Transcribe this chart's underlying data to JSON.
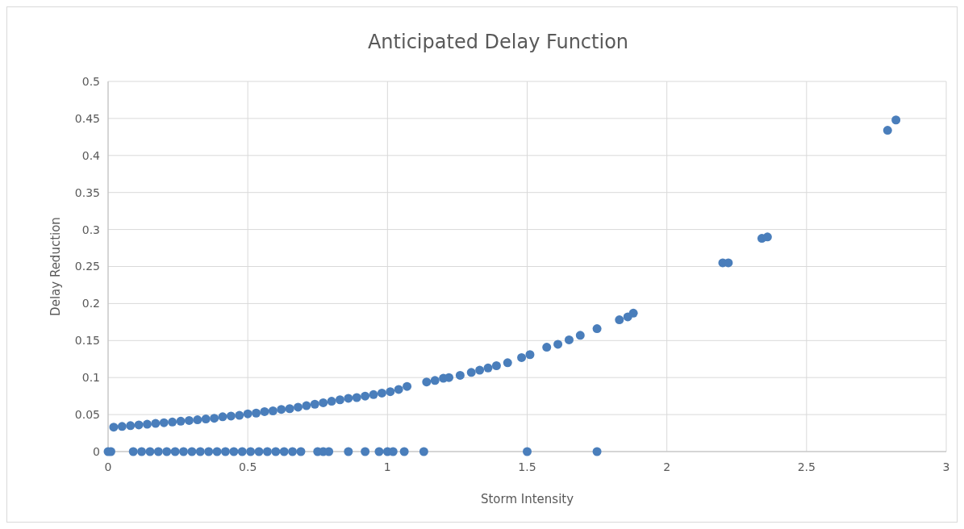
{
  "chart_data": {
    "type": "scatter",
    "title": "Anticipated Delay Function",
    "xlabel": "Storm Intensity",
    "ylabel": "Delay Reduction",
    "xlim": [
      0,
      3
    ],
    "xticks": [
      0,
      0.5,
      1,
      1.5,
      2,
      2.5,
      3
    ],
    "ylim": [
      0,
      0.5
    ],
    "yticks": [
      0,
      0.05,
      0.1,
      0.15,
      0.2,
      0.25,
      0.3,
      0.35,
      0.4,
      0.45,
      0.5
    ],
    "grid": true,
    "marker": "circle",
    "series": [
      {
        "color": "#4a7ebb",
        "x": [
          0.02,
          0.05,
          0.08,
          0.11,
          0.14,
          0.17,
          0.2,
          0.23,
          0.26,
          0.29,
          0.32,
          0.35,
          0.38,
          0.41,
          0.44,
          0.47,
          0.5,
          0.53,
          0.56,
          0.59,
          0.62,
          0.65,
          0.68,
          0.71,
          0.74,
          0.77,
          0.8,
          0.83,
          0.86,
          0.89,
          0.92,
          0.95,
          0.98,
          1.01,
          1.04,
          1.07,
          1.14,
          1.17,
          1.2,
          1.22,
          1.26,
          1.3,
          1.33,
          1.36,
          1.39,
          1.43,
          1.48,
          1.51,
          1.57,
          1.61,
          1.65,
          1.69,
          1.75,
          1.83,
          1.86,
          1.88,
          2.2,
          2.22,
          2.34,
          2.36,
          2.79,
          2.82,
          0,
          0.01,
          0.09,
          0.12,
          0.15,
          0.18,
          0.21,
          0.24,
          0.27,
          0.3,
          0.33,
          0.36,
          0.39,
          0.42,
          0.45,
          0.48,
          0.51,
          0.54,
          0.57,
          0.6,
          0.63,
          0.66,
          0.69,
          0.75,
          0.77,
          0.79,
          0.86,
          0.92,
          0.97,
          1,
          1.02,
          1.06,
          1.13,
          1.5,
          1.75
        ],
        "values": [
          0.033,
          0.034,
          0.035,
          0.036,
          0.037,
          0.038,
          0.039,
          0.04,
          0.041,
          0.042,
          0.043,
          0.044,
          0.045,
          0.047,
          0.048,
          0.049,
          0.051,
          0.052,
          0.054,
          0.055,
          0.057,
          0.058,
          0.06,
          0.062,
          0.064,
          0.066,
          0.068,
          0.07,
          0.072,
          0.073,
          0.075,
          0.077,
          0.079,
          0.081,
          0.084,
          0.088,
          0.094,
          0.096,
          0.099,
          0.1,
          0.103,
          0.107,
          0.11,
          0.113,
          0.116,
          0.12,
          0.127,
          0.131,
          0.141,
          0.145,
          0.151,
          0.157,
          0.166,
          0.178,
          0.182,
          0.187,
          0.255,
          0.255,
          0.288,
          0.29,
          0.434,
          0.448,
          0,
          0,
          0,
          0,
          0,
          0,
          0,
          0,
          0,
          0,
          0,
          0,
          0,
          0,
          0,
          0,
          0,
          0,
          0,
          0,
          0,
          0,
          0,
          0,
          0,
          0,
          0,
          0,
          0,
          0,
          0,
          0,
          0,
          0,
          0
        ]
      }
    ]
  }
}
